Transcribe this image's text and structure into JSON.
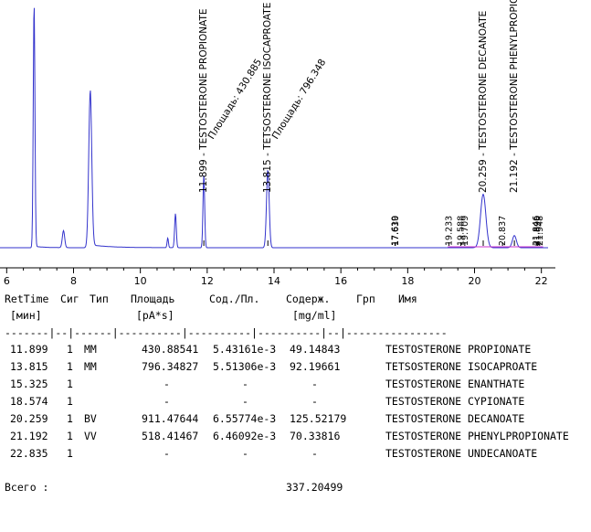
{
  "chart_data": {
    "type": "line",
    "xlim": [
      5.8,
      22.2
    ],
    "x_ticks": [
      6,
      8,
      10,
      12,
      14,
      16,
      18,
      20,
      22
    ],
    "trace_color": "#3333cc",
    "baseline_color": "#cc33cc",
    "peaks": [
      {
        "rt": 6.82,
        "height": 1.0
      },
      {
        "rt": 7.7,
        "height": 0.07
      },
      {
        "rt": 8.5,
        "height": 0.64
      },
      {
        "rt": 10.82,
        "height": 0.04
      },
      {
        "rt": 11.05,
        "height": 0.14
      },
      {
        "rt": 11.899,
        "height": 0.3
      },
      {
        "rt": 13.815,
        "height": 0.32
      },
      {
        "rt": 20.259,
        "height": 0.22
      },
      {
        "rt": 21.192,
        "height": 0.05
      }
    ],
    "peak_labels": [
      {
        "rt": 11.899,
        "rt_label": "11.899",
        "name": "TESTOSTERONE PROPIONATE",
        "area_label": "Площадь: 430.885"
      },
      {
        "rt": 13.815,
        "rt_label": "13.815",
        "name": "TETSOSTERONE ISOCAPROATE",
        "area_label": "Площадь: 796.348"
      },
      {
        "rt": 20.259,
        "rt_label": "20.259",
        "name": "TESTOSTERONE DECANOATE",
        "area_label": ""
      },
      {
        "rt": 21.192,
        "rt_label": "21.192",
        "name": "TESTOSTERONE PHENYLPROPIONATE",
        "area_label": ""
      }
    ],
    "minor_labels": [
      {
        "rt": 17.619,
        "label": "17.619"
      },
      {
        "rt": 17.63,
        "label": "17.630"
      },
      {
        "rt": 19.233,
        "label": "19.233"
      },
      {
        "rt": 19.588,
        "label": "19.588"
      },
      {
        "rt": 19.709,
        "label": "19.709"
      },
      {
        "rt": 20.837,
        "label": "20.837"
      },
      {
        "rt": 21.846,
        "label": "21.846"
      },
      {
        "rt": 21.89,
        "label": "21.890"
      },
      {
        "rt": 21.948,
        "label": "21.948"
      }
    ]
  },
  "report": {
    "headers": [
      "RetTime",
      "Сиг",
      "Тип",
      "Площадь",
      "Сод./Пл.",
      "Содерж.",
      "Грп",
      "Имя"
    ],
    "units": [
      "[мин]",
      "[pA*s]",
      "[mg/ml]"
    ],
    "separator": "-------|--|------|----------|----------|----------|--|----------------",
    "rows": [
      {
        "rt": "11.899",
        "sig": "1",
        "type": "MM",
        "area": "430.88541",
        "ratio": "5.43161e-3",
        "amount": "49.14843",
        "name": "TESTOSTERONE PROPIONATE"
      },
      {
        "rt": "13.815",
        "sig": "1",
        "type": "MM",
        "area": "796.34827",
        "ratio": "5.51306e-3",
        "amount": "92.19661",
        "name": "TETSOSTERONE ISOCAPROATE"
      },
      {
        "rt": "15.325",
        "sig": "1",
        "type": "",
        "area": "-",
        "ratio": "-",
        "amount": "-",
        "name": "TESTOSTERONE ENANTHATE"
      },
      {
        "rt": "18.574",
        "sig": "1",
        "type": "",
        "area": "-",
        "ratio": "-",
        "amount": "-",
        "name": "TESTOSTERONE CYPIONATE"
      },
      {
        "rt": "20.259",
        "sig": "1",
        "type": "BV",
        "area": "911.47644",
        "ratio": "6.55774e-3",
        "amount": "125.52179",
        "name": "TESTOSTERONE DECANOATE"
      },
      {
        "rt": "21.192",
        "sig": "1",
        "type": "VV",
        "area": "518.41467",
        "ratio": "6.46092e-3",
        "amount": "70.33816",
        "name": "TESTOSTERONE PHENYLPROPIONATE"
      },
      {
        "rt": "22.835",
        "sig": "1",
        "type": "",
        "area": "-",
        "ratio": "-",
        "amount": "-",
        "name": "TESTOSTERONE UNDECANOATE"
      }
    ],
    "total_label": "Всего :",
    "total_value": "337.20499"
  }
}
